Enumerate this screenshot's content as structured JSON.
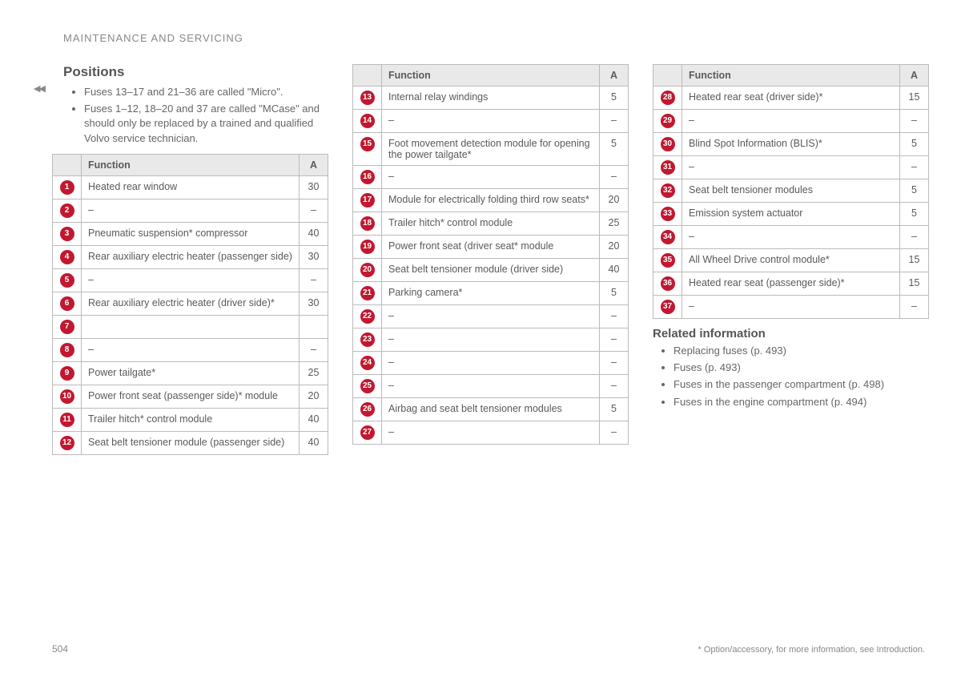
{
  "colors": {
    "circle_bg": "#c11830",
    "circle_text": "#ffffff",
    "header_bg": "#e9e9e9",
    "border": "#bbbbbb",
    "body_text": "#5a5a5a",
    "muted_text": "#888888",
    "background": "#ffffff"
  },
  "typography": {
    "body_fontsize": 13,
    "table_fontsize": 12.5,
    "heading_fontsize": 17,
    "subheading_fontsize": 15
  },
  "breadcrumb": "MAINTENANCE AND SERVICING",
  "nav_glyph": "◀◀",
  "page_number": "504",
  "footnote": "* Option/accessory, for more information, see Introduction.",
  "positions": {
    "heading": "Positions",
    "bullets": [
      "Fuses 13–17 and 21–36 are called \"Micro\".",
      "Fuses 1–12, 18–20  and 37 are called \"MCase\" and should only be replaced by a trained and qualified Volvo service technician."
    ]
  },
  "table_headers": {
    "function": "Function",
    "amp": "A"
  },
  "table1": [
    {
      "n": "1",
      "f": "Heated rear window",
      "a": "30"
    },
    {
      "n": "2",
      "f": "–",
      "a": "–"
    },
    {
      "n": "3",
      "f": "Pneumatic suspension* compressor",
      "a": "40"
    },
    {
      "n": "4",
      "f": "Rear auxiliary electric heater (passenger side)",
      "a": "30"
    },
    {
      "n": "5",
      "f": "–",
      "a": "–"
    },
    {
      "n": "6",
      "f": "Rear auxiliary electric heater (driver side)*",
      "a": "30"
    },
    {
      "n": "7",
      "f": "",
      "a": ""
    },
    {
      "n": "8",
      "f": "–",
      "a": "–"
    },
    {
      "n": "9",
      "f": "Power tailgate*",
      "a": "25"
    },
    {
      "n": "10",
      "f": "Power front seat (passenger side)* module",
      "a": "20"
    },
    {
      "n": "11",
      "f": "Trailer hitch* control module",
      "a": "40"
    },
    {
      "n": "12",
      "f": "Seat belt tensioner module (passenger side)",
      "a": "40"
    }
  ],
  "table2": [
    {
      "n": "13",
      "f": "Internal relay windings",
      "a": "5"
    },
    {
      "n": "14",
      "f": "–",
      "a": "–"
    },
    {
      "n": "15",
      "f": "Foot movement detection module for opening the power tailgate*",
      "a": "5"
    },
    {
      "n": "16",
      "f": "–",
      "a": "–"
    },
    {
      "n": "17",
      "f": "Module for electrically folding third row seats*",
      "a": "20"
    },
    {
      "n": "18",
      "f": "Trailer hitch* control module",
      "a": "25"
    },
    {
      "n": "19",
      "f": "Power front seat (driver seat* module",
      "a": "20"
    },
    {
      "n": "20",
      "f": "Seat belt tensioner module (driver side)",
      "a": "40"
    },
    {
      "n": "21",
      "f": "Parking camera*",
      "a": "5"
    },
    {
      "n": "22",
      "f": "–",
      "a": "–"
    },
    {
      "n": "23",
      "f": "–",
      "a": "–"
    },
    {
      "n": "24",
      "f": "–",
      "a": "–"
    },
    {
      "n": "25",
      "f": "–",
      "a": "–"
    },
    {
      "n": "26",
      "f": "Airbag and seat belt tensioner modules",
      "a": "5"
    },
    {
      "n": "27",
      "f": "–",
      "a": "–"
    }
  ],
  "table3": [
    {
      "n": "28",
      "f": "Heated rear seat (driver side)*",
      "a": "15"
    },
    {
      "n": "29",
      "f": "–",
      "a": "–"
    },
    {
      "n": "30",
      "f": "Blind Spot Information (BLIS)*",
      "a": "5"
    },
    {
      "n": "31",
      "f": "–",
      "a": "–"
    },
    {
      "n": "32",
      "f": "Seat belt tensioner modules",
      "a": "5"
    },
    {
      "n": "33",
      "f": "Emission system actuator",
      "a": "5"
    },
    {
      "n": "34",
      "f": "–",
      "a": "–"
    },
    {
      "n": "35",
      "f": "All Wheel Drive control module*",
      "a": "15"
    },
    {
      "n": "36",
      "f": "Heated rear seat (passenger side)*",
      "a": "15"
    },
    {
      "n": "37",
      "f": "–",
      "a": "–"
    }
  ],
  "related": {
    "heading": "Related information",
    "items": [
      "Replacing fuses (p. 493)",
      "Fuses (p. 493)",
      "Fuses in the passenger compartment (p. 498)",
      "Fuses in the engine compartment (p. 494)"
    ]
  }
}
